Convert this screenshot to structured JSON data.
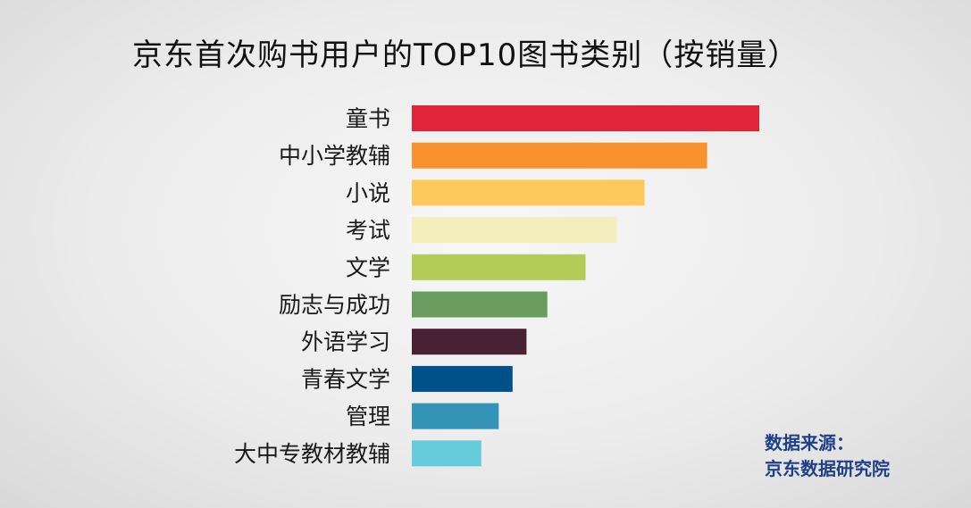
{
  "chart_data": {
    "type": "bar",
    "orientation": "horizontal",
    "title": "京东首次购书用户的TOP10图书类别（按销量）",
    "categories": [
      "童书",
      "中小学教辅",
      "小说",
      "考试",
      "文学",
      "励志与成功",
      "外语学习",
      "青春文学",
      "管理",
      "大中专教材教辅"
    ],
    "values": [
      100,
      85,
      67,
      59,
      50,
      39,
      33,
      29,
      25,
      20
    ],
    "colors": [
      "#e0243a",
      "#f7922d",
      "#fec95c",
      "#f3eebc",
      "#b2cc55",
      "#6a9b5f",
      "#472234",
      "#005089",
      "#3493b6",
      "#65ccdc"
    ],
    "xlim": [
      0,
      100
    ],
    "grid": false,
    "legend": "none"
  },
  "source": {
    "label": "数据来源：",
    "name": "京东数据研究院"
  }
}
